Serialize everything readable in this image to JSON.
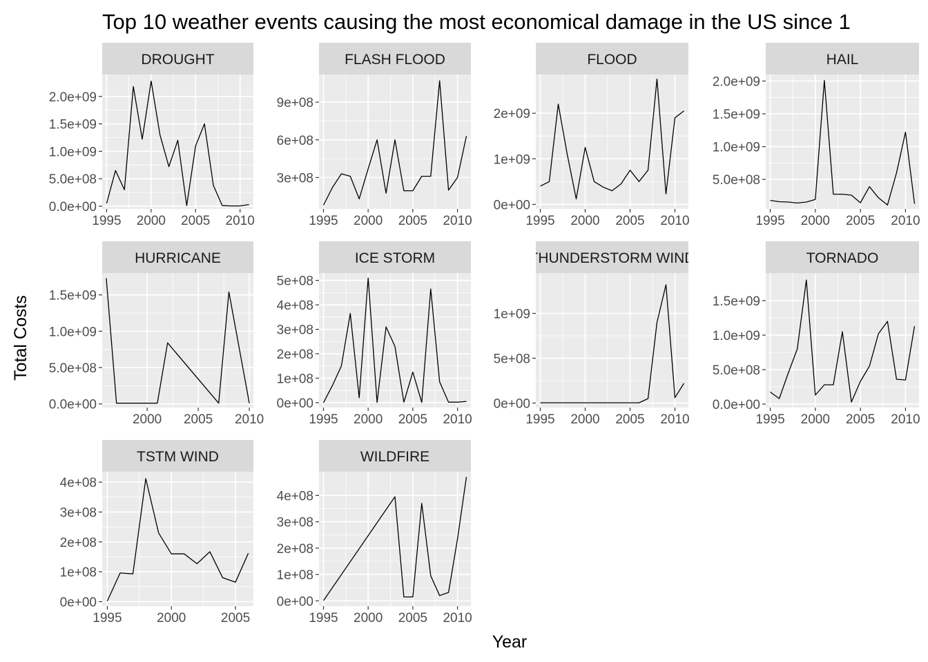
{
  "chart_data": {
    "type": "line",
    "title": "Top 10 weather events causing the most economical damage in the US since 1",
    "xlabel": "Year",
    "ylabel": "Total Costs",
    "colors": {
      "line": "#000000",
      "panel_bg": "#ebebeb",
      "strip_bg": "#d9d9d9",
      "grid": "#ffffff"
    },
    "panels": [
      {
        "name": "DROUGHT",
        "xlim": [
          1994.5,
          2011.5
        ],
        "ylim": [
          -50000000.0,
          2400000000.0
        ],
        "xticks": [
          {
            "v": 1995,
            "l": "1995"
          },
          {
            "v": 2000,
            "l": "2000"
          },
          {
            "v": 2005,
            "l": "2005"
          },
          {
            "v": 2010,
            "l": "2010"
          }
        ],
        "yticks": [
          {
            "v": 0,
            "l": "0.0e+00"
          },
          {
            "v": 500000000.0,
            "l": "5.0e+08"
          },
          {
            "v": 1000000000.0,
            "l": "1.0e+09"
          },
          {
            "v": 1500000000.0,
            "l": "1.5e+09"
          },
          {
            "v": 2000000000.0,
            "l": "2.0e+09"
          }
        ],
        "x": [
          1995,
          1996,
          1997,
          1998,
          1999,
          2000,
          2001,
          2002,
          2003,
          2004,
          2005,
          2006,
          2007,
          2008,
          2009,
          2010,
          2011
        ],
        "y": [
          50000000.0,
          650000000.0,
          300000000.0,
          2180000000.0,
          1220000000.0,
          2280000000.0,
          1300000000.0,
          720000000.0,
          1200000000.0,
          10000000.0,
          1100000000.0,
          1500000000.0,
          380000000.0,
          10000000.0,
          5000000.0,
          5000000.0,
          30000000.0
        ]
      },
      {
        "name": "FLASH FLOOD",
        "xlim": [
          1994.5,
          2011.5
        ],
        "ylim": [
          50000000.0,
          1120000000.0
        ],
        "xticks": [
          {
            "v": 1995,
            "l": "1995"
          },
          {
            "v": 2000,
            "l": "2000"
          },
          {
            "v": 2005,
            "l": "2005"
          },
          {
            "v": 2010,
            "l": "2010"
          }
        ],
        "yticks": [
          {
            "v": 300000000.0,
            "l": "3e+08"
          },
          {
            "v": 600000000.0,
            "l": "6e+08"
          },
          {
            "v": 900000000.0,
            "l": "9e+08"
          }
        ],
        "x": [
          1995,
          1996,
          1997,
          1998,
          1999,
          2000,
          2001,
          2002,
          2003,
          2004,
          2005,
          2006,
          2007,
          2008,
          2009,
          2010,
          2011
        ],
        "y": [
          80000000.0,
          220000000.0,
          330000000.0,
          310000000.0,
          130000000.0,
          370000000.0,
          600000000.0,
          175000000.0,
          600000000.0,
          195000000.0,
          195000000.0,
          310000000.0,
          310000000.0,
          1070000000.0,
          200000000.0,
          300000000.0,
          630000000.0
        ]
      },
      {
        "name": "FLOOD",
        "xlim": [
          1994.5,
          2011.5
        ],
        "ylim": [
          -100000000.0,
          2850000000.0
        ],
        "xticks": [
          {
            "v": 1995,
            "l": "1995"
          },
          {
            "v": 2000,
            "l": "2000"
          },
          {
            "v": 2005,
            "l": "2005"
          },
          {
            "v": 2010,
            "l": "2010"
          }
        ],
        "yticks": [
          {
            "v": 0,
            "l": "0e+00"
          },
          {
            "v": 1000000000.0,
            "l": "1e+09"
          },
          {
            "v": 2000000000.0,
            "l": "2e+09"
          }
        ],
        "x": [
          1995,
          1996,
          1997,
          1998,
          1999,
          2000,
          2001,
          2002,
          2003,
          2004,
          2005,
          2006,
          2007,
          2008,
          2009,
          2010,
          2011
        ],
        "y": [
          400000000.0,
          500000000.0,
          2200000000.0,
          1100000000.0,
          120000000.0,
          1250000000.0,
          500000000.0,
          380000000.0,
          300000000.0,
          450000000.0,
          750000000.0,
          500000000.0,
          750000000.0,
          2750000000.0,
          230000000.0,
          1900000000.0,
          2050000000.0
        ]
      },
      {
        "name": "HAIL",
        "xlim": [
          1994.5,
          2011.5
        ],
        "ylim": [
          50000000.0,
          2100000000.0
        ],
        "xticks": [
          {
            "v": 1995,
            "l": "1995"
          },
          {
            "v": 2000,
            "l": "2000"
          },
          {
            "v": 2005,
            "l": "2005"
          },
          {
            "v": 2010,
            "l": "2010"
          }
        ],
        "yticks": [
          {
            "v": 500000000.0,
            "l": "5.0e+08"
          },
          {
            "v": 1000000000.0,
            "l": "1.0e+09"
          },
          {
            "v": 1500000000.0,
            "l": "1.5e+09"
          },
          {
            "v": 2000000000.0,
            "l": "2.0e+09"
          }
        ],
        "x": [
          1995,
          1996,
          1997,
          1998,
          1999,
          2000,
          2001,
          2002,
          2003,
          2004,
          2005,
          2006,
          2007,
          2008,
          2009,
          2010,
          2011
        ],
        "y": [
          180000000.0,
          160000000.0,
          155000000.0,
          140000000.0,
          155000000.0,
          195000000.0,
          2010000000.0,
          275000000.0,
          275000000.0,
          260000000.0,
          145000000.0,
          390000000.0,
          220000000.0,
          110000000.0,
          600000000.0,
          1220000000.0,
          130000000.0
        ]
      },
      {
        "name": "HURRICANE",
        "xlim": [
          1995.6,
          2010.4
        ],
        "ylim": [
          -50000000.0,
          1800000000.0
        ],
        "xticks": [
          {
            "v": 2000,
            "l": "2000"
          },
          {
            "v": 2005,
            "l": "2005"
          },
          {
            "v": 2010,
            "l": "2010"
          }
        ],
        "yticks": [
          {
            "v": 0,
            "l": "0.0e+00"
          },
          {
            "v": 500000000.0,
            "l": "5.0e+08"
          },
          {
            "v": 1000000000.0,
            "l": "1.0e+09"
          },
          {
            "v": 1500000000.0,
            "l": "1.5e+09"
          }
        ],
        "x": [
          1996,
          1997,
          1998,
          1999,
          2000,
          2001,
          2002,
          2007,
          2008,
          2010
        ],
        "y": [
          1730000000.0,
          10000000.0,
          10000000.0,
          10000000.0,
          10000000.0,
          10000000.0,
          840000000.0,
          10000000.0,
          1540000000.0,
          10000000.0
        ]
      },
      {
        "name": "ICE STORM",
        "xlim": [
          1994.5,
          2011.5
        ],
        "ylim": [
          -20000000.0,
          530000000.0
        ],
        "xticks": [
          {
            "v": 1995,
            "l": "1995"
          },
          {
            "v": 2000,
            "l": "2000"
          },
          {
            "v": 2005,
            "l": "2005"
          },
          {
            "v": 2010,
            "l": "2010"
          }
        ],
        "yticks": [
          {
            "v": 0,
            "l": "0e+00"
          },
          {
            "v": 100000000.0,
            "l": "1e+08"
          },
          {
            "v": 200000000.0,
            "l": "2e+08"
          },
          {
            "v": 300000000.0,
            "l": "3e+08"
          },
          {
            "v": 400000000.0,
            "l": "4e+08"
          },
          {
            "v": 500000000.0,
            "l": "5e+08"
          }
        ],
        "x": [
          1995,
          1996,
          1997,
          1998,
          1999,
          2000,
          2001,
          2002,
          2003,
          2004,
          2005,
          2006,
          2007,
          2008,
          2009,
          2010,
          2011
        ],
        "y": [
          0,
          70000000.0,
          150000000.0,
          365000000.0,
          20000000.0,
          510000000.0,
          1000000.0,
          310000000.0,
          230000000.0,
          2000000.0,
          125000000.0,
          1000000.0,
          465000000.0,
          85000000.0,
          2000000.0,
          2000000.0,
          5000000.0
        ]
      },
      {
        "name": "THUNDERSTORM WIND",
        "xlim": [
          1994.5,
          2011.5
        ],
        "ylim": [
          -50000000.0,
          1450000000.0
        ],
        "xticks": [
          {
            "v": 1995,
            "l": "1995"
          },
          {
            "v": 2000,
            "l": "2000"
          },
          {
            "v": 2005,
            "l": "2005"
          },
          {
            "v": 2010,
            "l": "2010"
          }
        ],
        "yticks": [
          {
            "v": 0,
            "l": "0e+00"
          },
          {
            "v": 500000000.0,
            "l": "5e+08"
          },
          {
            "v": 1000000000.0,
            "l": "1e+09"
          }
        ],
        "x": [
          1995,
          1996,
          1997,
          1998,
          1999,
          2000,
          2001,
          2002,
          2003,
          2004,
          2005,
          2006,
          2007,
          2008,
          2009,
          2010,
          2011
        ],
        "y": [
          3000000.0,
          3000000.0,
          3000000.0,
          3000000.0,
          3000000.0,
          3000000.0,
          3000000.0,
          3000000.0,
          3000000.0,
          3000000.0,
          3000000.0,
          3000000.0,
          50000000.0,
          900000000.0,
          1320000000.0,
          60000000.0,
          220000000.0
        ]
      },
      {
        "name": "TORNADO",
        "xlim": [
          1994.5,
          2011.5
        ],
        "ylim": [
          -50000000.0,
          1900000000.0
        ],
        "xticks": [
          {
            "v": 1995,
            "l": "1995"
          },
          {
            "v": 2000,
            "l": "2000"
          },
          {
            "v": 2005,
            "l": "2005"
          },
          {
            "v": 2010,
            "l": "2010"
          }
        ],
        "yticks": [
          {
            "v": 0,
            "l": "0.0e+00"
          },
          {
            "v": 500000000.0,
            "l": "5.0e+08"
          },
          {
            "v": 1000000000.0,
            "l": "1.0e+09"
          },
          {
            "v": 1500000000.0,
            "l": "1.5e+09"
          }
        ],
        "x": [
          1995,
          1996,
          1997,
          1998,
          1999,
          2000,
          2001,
          2002,
          2003,
          2004,
          2005,
          2006,
          2007,
          2008,
          2009,
          2010,
          2011
        ],
        "y": [
          175000000.0,
          80000000.0,
          450000000.0,
          800000000.0,
          1800000000.0,
          130000000.0,
          280000000.0,
          280000000.0,
          1050000000.0,
          30000000.0,
          330000000.0,
          550000000.0,
          1020000000.0,
          1200000000.0,
          360000000.0,
          350000000.0,
          1130000000.0
        ]
      },
      {
        "name": "TSTM WIND",
        "xlim": [
          1994.6,
          2006.4
        ],
        "ylim": [
          -15000000.0,
          435000000.0
        ],
        "xticks": [
          {
            "v": 1995,
            "l": "1995"
          },
          {
            "v": 2000,
            "l": "2000"
          },
          {
            "v": 2005,
            "l": "2005"
          }
        ],
        "yticks": [
          {
            "v": 0,
            "l": "0e+00"
          },
          {
            "v": 100000000.0,
            "l": "1e+08"
          },
          {
            "v": 200000000.0,
            "l": "2e+08"
          },
          {
            "v": 300000000.0,
            "l": "3e+08"
          },
          {
            "v": 400000000.0,
            "l": "4e+08"
          }
        ],
        "x": [
          1995,
          1996,
          1997,
          1998,
          1999,
          2000,
          2001,
          2002,
          2003,
          2004,
          2005,
          2006
        ],
        "y": [
          2000000.0,
          96000000.0,
          93000000.0,
          412000000.0,
          230000000.0,
          160000000.0,
          160000000.0,
          127000000.0,
          167000000.0,
          80000000.0,
          65000000.0,
          162000000.0
        ]
      },
      {
        "name": "WILDFIRE",
        "xlim": [
          1994.5,
          2011.5
        ],
        "ylim": [
          -20000000.0,
          490000000.0
        ],
        "xticks": [
          {
            "v": 1995,
            "l": "1995"
          },
          {
            "v": 2000,
            "l": "2000"
          },
          {
            "v": 2005,
            "l": "2005"
          },
          {
            "v": 2010,
            "l": "2010"
          }
        ],
        "yticks": [
          {
            "v": 0,
            "l": "0e+00"
          },
          {
            "v": 100000000.0,
            "l": "1e+08"
          },
          {
            "v": 200000000.0,
            "l": "2e+08"
          },
          {
            "v": 300000000.0,
            "l": "3e+08"
          },
          {
            "v": 400000000.0,
            "l": "4e+08"
          }
        ],
        "x": [
          1995,
          2003,
          2004,
          2005,
          2006,
          2007,
          2008,
          2009,
          2010,
          2011
        ],
        "y": [
          1000000.0,
          395000000.0,
          15000000.0,
          15000000.0,
          370000000.0,
          95000000.0,
          20000000.0,
          32000000.0,
          235000000.0,
          470000000.0
        ]
      }
    ]
  }
}
